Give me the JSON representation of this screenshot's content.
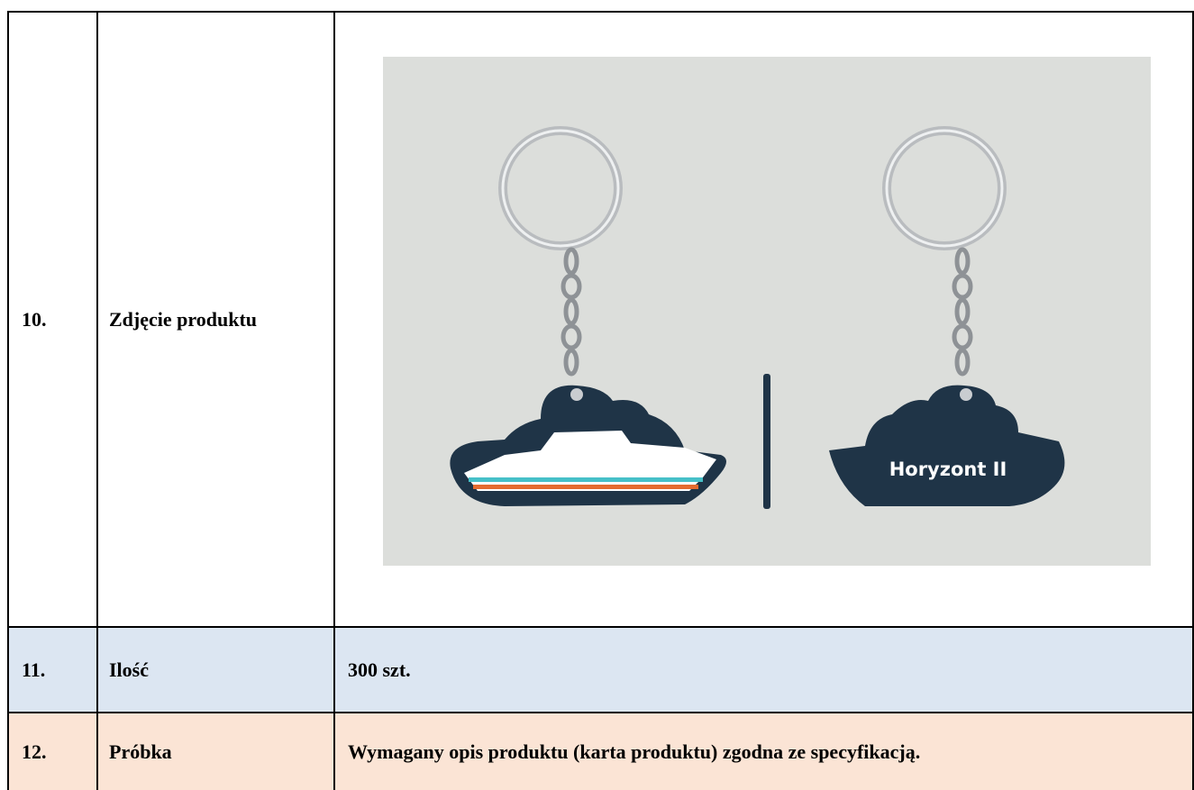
{
  "table": {
    "rows": [
      [
        "10.",
        "Zdjęcie produktu"
      ],
      [
        "11.",
        "Ilość",
        "300 szt."
      ],
      [
        "12.",
        "Próbka",
        "Wymagany opis produktu (karta produktu) zgodna ze specyfikacją."
      ]
    ]
  },
  "image": {
    "label": "Horyzont II"
  }
}
